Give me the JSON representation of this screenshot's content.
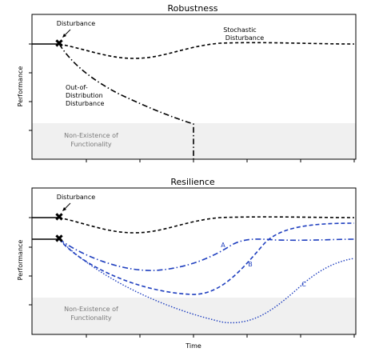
{
  "colors": {
    "black_curve": "#000000",
    "blue_curve": "#1f3fbf",
    "region_fill": "#f0f0f0",
    "region_text": "#7a7a7a"
  },
  "top_panel": {
    "title": "Robustness",
    "ylabel": "Performance",
    "disturbance_label": "Disturbance",
    "stochastic_label_line1": "Stochastic",
    "stochastic_label_line2": "Disturbance",
    "ood_label_line1": "Out-of-",
    "ood_label_line2": "Distribution",
    "ood_label_line3": "Disturbance",
    "region_label_line1": "Non-Existence of",
    "region_label_line2": "Functionality"
  },
  "bottom_panel": {
    "title": "Resilience",
    "ylabel": "Performance",
    "xlabel": "Time",
    "disturbance_label": "Disturbance",
    "curve_labels": {
      "a": "A",
      "b": "B",
      "c": "C"
    },
    "region_label_line1": "Non-Existence of",
    "region_label_line2": "Functionality"
  }
}
